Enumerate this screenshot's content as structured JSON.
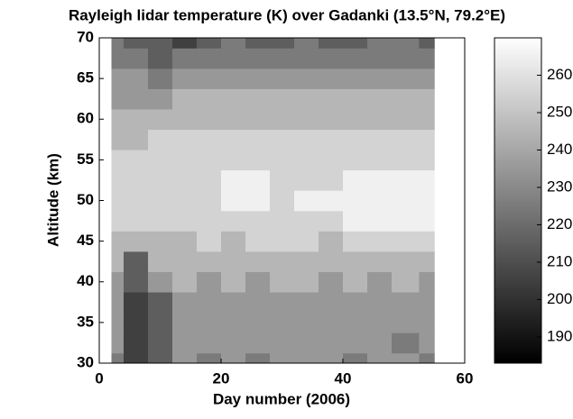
{
  "chart_data": {
    "type": "contour",
    "title": "Rayleigh lidar temperature (K) over Gadanki (13.5°N, 79.2°E)",
    "x_label": "Day number (2006)",
    "y_label": "Altitude (km)",
    "xlim": [
      0,
      60
    ],
    "xticks": [
      0,
      20,
      40,
      60
    ],
    "ylim": [
      30,
      70
    ],
    "yticks": [
      30,
      35,
      40,
      45,
      50,
      55,
      60,
      65,
      70
    ],
    "clim": [
      183,
      270
    ],
    "cticks": [
      190,
      200,
      210,
      220,
      230,
      240,
      250,
      260
    ],
    "x": [
      2,
      6,
      10,
      14,
      18,
      22,
      26,
      30,
      34,
      38,
      42,
      46,
      50,
      55
    ],
    "y": [
      30,
      32.5,
      35,
      37.5,
      40,
      42.5,
      45,
      47.5,
      50,
      52.5,
      55,
      57.5,
      60,
      62.5,
      65,
      67.5,
      70
    ],
    "z": [
      [
        228,
        205,
        215,
        232,
        228,
        230,
        226,
        232,
        230,
        232,
        228,
        232,
        230,
        228
      ],
      [
        230,
        205,
        212,
        232,
        232,
        230,
        232,
        230,
        232,
        230,
        232,
        230,
        228,
        232
      ],
      [
        232,
        208,
        215,
        235,
        232,
        234,
        232,
        235,
        232,
        234,
        232,
        235,
        234,
        232
      ],
      [
        235,
        208,
        218,
        236,
        236,
        235,
        237,
        236,
        235,
        236,
        236,
        235,
        236,
        235
      ],
      [
        238,
        210,
        230,
        240,
        238,
        240,
        238,
        240,
        240,
        238,
        240,
        238,
        240,
        238
      ],
      [
        240,
        215,
        240,
        242,
        244,
        242,
        242,
        244,
        243,
        242,
        243,
        242,
        244,
        242
      ],
      [
        245,
        248,
        245,
        247,
        250,
        248,
        250,
        252,
        250,
        248,
        250,
        252,
        250,
        251
      ],
      [
        250,
        252,
        253,
        252,
        254,
        255,
        256,
        255,
        256,
        258,
        262,
        262,
        263,
        262
      ],
      [
        252,
        254,
        255,
        255,
        256,
        262,
        264,
        256,
        262,
        263,
        262,
        262,
        264,
        263
      ],
      [
        252,
        253,
        255,
        255,
        256,
        262,
        262,
        258,
        255,
        258,
        260,
        261,
        262,
        262
      ],
      [
        250,
        252,
        253,
        255,
        255,
        255,
        256,
        256,
        256,
        255,
        256,
        255,
        256,
        255
      ],
      [
        248,
        248,
        250,
        250,
        252,
        252,
        252,
        253,
        252,
        252,
        253,
        252,
        252,
        250
      ],
      [
        245,
        242,
        245,
        245,
        246,
        246,
        246,
        248,
        247,
        248,
        246,
        245,
        246,
        247
      ],
      [
        238,
        236,
        238,
        240,
        240,
        242,
        240,
        240,
        242,
        240,
        240,
        240,
        242,
        240
      ],
      [
        232,
        230,
        228,
        232,
        234,
        233,
        232,
        232,
        234,
        232,
        232,
        232,
        235,
        232
      ],
      [
        228,
        222,
        218,
        220,
        226,
        228,
        226,
        225,
        228,
        226,
        226,
        228,
        227,
        224
      ],
      [
        220,
        216,
        210,
        208,
        218,
        220,
        218,
        218,
        222,
        218,
        216,
        220,
        220,
        212
      ]
    ]
  }
}
